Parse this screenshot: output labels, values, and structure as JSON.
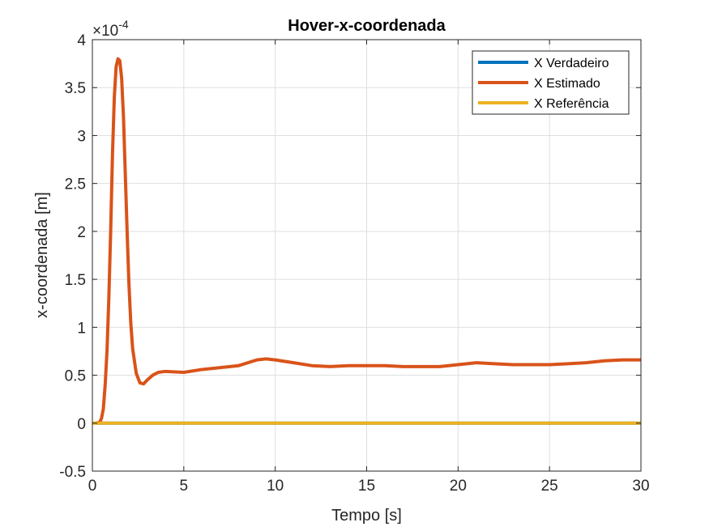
{
  "chart_data": {
    "type": "line",
    "title": "Hover-x-coordenada",
    "xlabel": "Tempo [s]",
    "ylabel": "x-coordenada [m]",
    "exponent_base": "×10",
    "exponent_power": "-4",
    "xlim": [
      0,
      30
    ],
    "ylim": [
      -0.5,
      4
    ],
    "xticks": [
      0,
      5,
      10,
      15,
      20,
      25,
      30
    ],
    "yticks": [
      -0.5,
      0,
      0.5,
      1,
      1.5,
      2,
      2.5,
      3,
      3.5,
      4
    ],
    "xtick_labels": [
      "0",
      "5",
      "10",
      "15",
      "20",
      "25",
      "30"
    ],
    "ytick_labels": [
      "-0.5",
      "0",
      "0.5",
      "1",
      "1.5",
      "2",
      "2.5",
      "3",
      "3.5",
      "4"
    ],
    "grid": true,
    "legend_position": "top-right",
    "series": [
      {
        "name": "X Verdadeiro",
        "color": "#0072BD",
        "x": [
          0.2,
          30
        ],
        "y": [
          0,
          0
        ]
      },
      {
        "name": "X Estimado",
        "color": "#D95319",
        "x": [
          0.2,
          0.4,
          0.5,
          0.6,
          0.7,
          0.8,
          0.9,
          1.0,
          1.1,
          1.2,
          1.3,
          1.4,
          1.5,
          1.6,
          1.7,
          1.8,
          1.9,
          2.0,
          2.1,
          2.2,
          2.4,
          2.6,
          2.8,
          3.0,
          3.3,
          3.6,
          4.0,
          5.0,
          6.0,
          7.0,
          8.0,
          9.0,
          9.5,
          10.0,
          11.0,
          12.0,
          13.0,
          14.0,
          15.0,
          16.0,
          17.0,
          18.0,
          19.0,
          20.0,
          21.0,
          22.0,
          23.0,
          24.0,
          25.0,
          26.0,
          27.0,
          28.0,
          29.0,
          30.0
        ],
        "y": [
          0,
          0.01,
          0.05,
          0.15,
          0.4,
          0.75,
          1.3,
          2.0,
          2.8,
          3.4,
          3.72,
          3.8,
          3.78,
          3.6,
          3.2,
          2.6,
          2.0,
          1.45,
          1.05,
          0.78,
          0.52,
          0.42,
          0.41,
          0.45,
          0.5,
          0.53,
          0.54,
          0.53,
          0.56,
          0.58,
          0.6,
          0.66,
          0.67,
          0.66,
          0.63,
          0.6,
          0.59,
          0.6,
          0.6,
          0.6,
          0.59,
          0.59,
          0.59,
          0.61,
          0.63,
          0.62,
          0.61,
          0.61,
          0.61,
          0.62,
          0.63,
          0.65,
          0.66,
          0.66
        ]
      },
      {
        "name": "X Referência",
        "color": "#EDB120",
        "x": [
          0,
          30
        ],
        "y": [
          0,
          0
        ]
      }
    ]
  }
}
